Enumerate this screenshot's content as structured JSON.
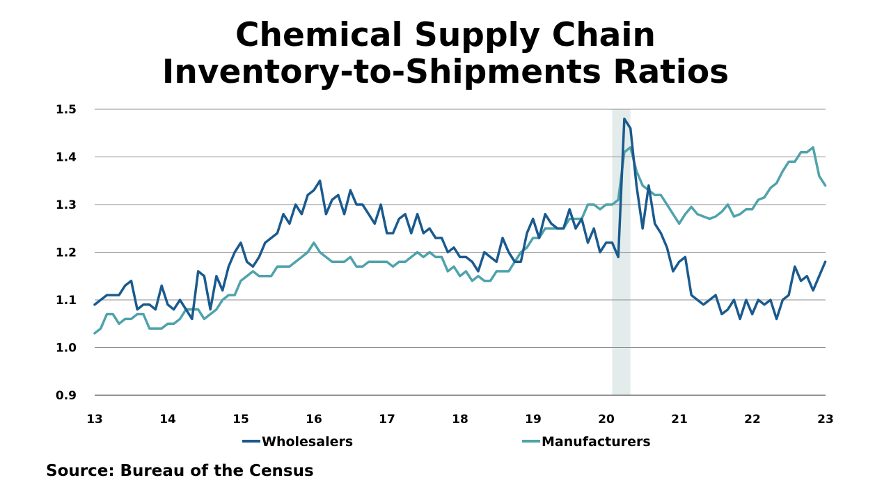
{
  "title_line1": "Chemical Supply Chain",
  "title_line2": "Inventory-to-Shipments Ratios",
  "source": "Source: Bureau of the Census",
  "colors": {
    "wholesalers": "#1a5a8e",
    "manufacturers": "#4fa3ab",
    "shade": "#e3ecea",
    "grid": "#8c8c8c"
  },
  "chart_data": {
    "type": "line",
    "title": "Chemical Supply Chain Inventory-to-Shipments Ratios",
    "xlabel": "",
    "ylabel": "",
    "xlim": [
      13,
      23
    ],
    "ylim": [
      0.9,
      1.5
    ],
    "x_ticks": [
      "13",
      "14",
      "15",
      "16",
      "17",
      "18",
      "19",
      "20",
      "21",
      "22",
      "23"
    ],
    "y_ticks": [
      "0.9",
      "1.0",
      "1.1",
      "1.2",
      "1.3",
      "1.4",
      "1.5"
    ],
    "grid": "horizontal",
    "legend_position": "bottom",
    "shaded_region": [
      20.08,
      20.33
    ],
    "series": [
      {
        "name": "Wholesalers",
        "x_start": 13,
        "x_step": 0.0833,
        "values": [
          1.09,
          1.1,
          1.11,
          1.11,
          1.11,
          1.13,
          1.14,
          1.08,
          1.09,
          1.09,
          1.08,
          1.13,
          1.09,
          1.08,
          1.1,
          1.08,
          1.06,
          1.16,
          1.15,
          1.08,
          1.15,
          1.12,
          1.17,
          1.2,
          1.22,
          1.18,
          1.17,
          1.19,
          1.22,
          1.23,
          1.24,
          1.28,
          1.26,
          1.3,
          1.28,
          1.32,
          1.33,
          1.35,
          1.28,
          1.31,
          1.32,
          1.28,
          1.33,
          1.3,
          1.3,
          1.28,
          1.26,
          1.3,
          1.24,
          1.24,
          1.27,
          1.28,
          1.24,
          1.28,
          1.24,
          1.25,
          1.23,
          1.23,
          1.2,
          1.21,
          1.19,
          1.19,
          1.18,
          1.16,
          1.2,
          1.19,
          1.18,
          1.23,
          1.2,
          1.18,
          1.18,
          1.24,
          1.27,
          1.23,
          1.28,
          1.26,
          1.25,
          1.25,
          1.29,
          1.25,
          1.27,
          1.22,
          1.25,
          1.2,
          1.22,
          1.22,
          1.19,
          1.48,
          1.46,
          1.34,
          1.25,
          1.34,
          1.26,
          1.24,
          1.21,
          1.16,
          1.18,
          1.19,
          1.11,
          1.1,
          1.09,
          1.1,
          1.11,
          1.07,
          1.08,
          1.1,
          1.06,
          1.1,
          1.07,
          1.1,
          1.09,
          1.1,
          1.06,
          1.1,
          1.11,
          1.17,
          1.14,
          1.15,
          1.12,
          1.15,
          1.18
        ]
      },
      {
        "name": "Manufacturers",
        "x_start": 13,
        "x_step": 0.0833,
        "values": [
          1.03,
          1.04,
          1.07,
          1.07,
          1.05,
          1.06,
          1.06,
          1.07,
          1.07,
          1.04,
          1.04,
          1.04,
          1.05,
          1.05,
          1.06,
          1.08,
          1.08,
          1.08,
          1.06,
          1.07,
          1.08,
          1.1,
          1.11,
          1.11,
          1.14,
          1.15,
          1.16,
          1.15,
          1.15,
          1.15,
          1.17,
          1.17,
          1.17,
          1.18,
          1.19,
          1.2,
          1.22,
          1.2,
          1.19,
          1.18,
          1.18,
          1.18,
          1.19,
          1.17,
          1.17,
          1.18,
          1.18,
          1.18,
          1.18,
          1.17,
          1.18,
          1.18,
          1.19,
          1.2,
          1.19,
          1.2,
          1.19,
          1.19,
          1.16,
          1.17,
          1.15,
          1.16,
          1.14,
          1.15,
          1.14,
          1.14,
          1.16,
          1.16,
          1.16,
          1.18,
          1.2,
          1.21,
          1.23,
          1.23,
          1.25,
          1.25,
          1.25,
          1.25,
          1.27,
          1.27,
          1.27,
          1.3,
          1.3,
          1.29,
          1.3,
          1.3,
          1.31,
          1.41,
          1.42,
          1.37,
          1.34,
          1.33,
          1.32,
          1.32,
          1.3,
          1.28,
          1.26,
          1.28,
          1.295,
          1.28,
          1.275,
          1.27,
          1.275,
          1.285,
          1.3,
          1.275,
          1.28,
          1.29,
          1.29,
          1.31,
          1.315,
          1.335,
          1.345,
          1.37,
          1.39,
          1.39,
          1.41,
          1.41,
          1.42,
          1.36,
          1.34
        ]
      }
    ]
  }
}
